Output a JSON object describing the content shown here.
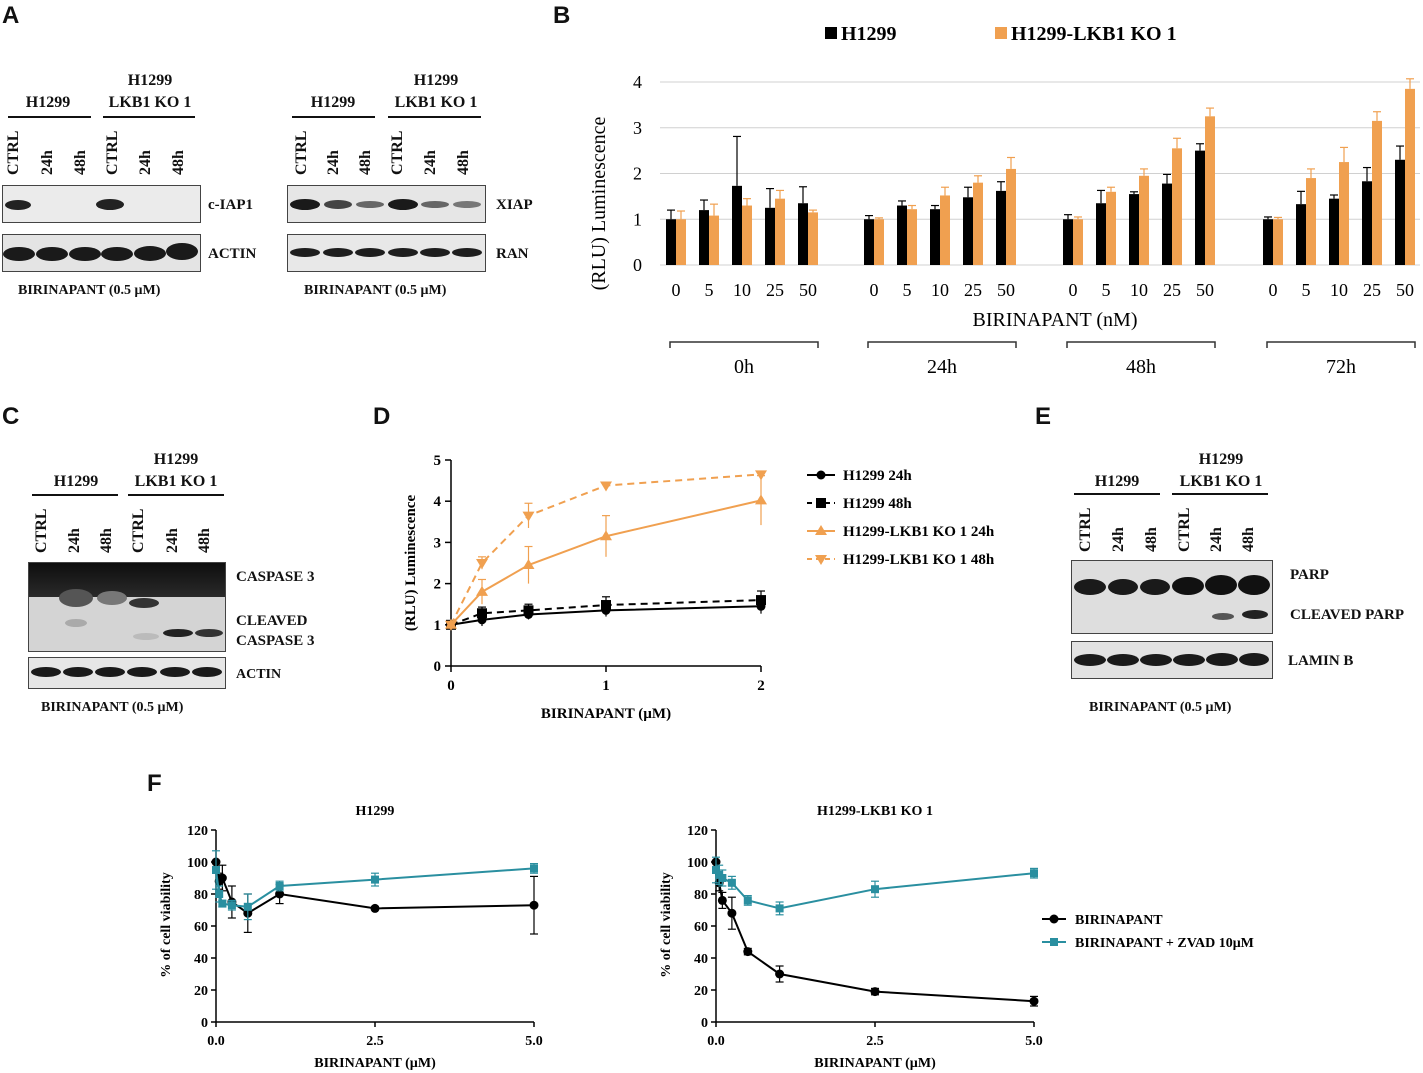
{
  "panels": {
    "A": "A",
    "B": "B",
    "C": "C",
    "D": "D",
    "E": "E",
    "F": "F"
  },
  "western": {
    "group1": "H1299",
    "group2_line1": "H1299",
    "group2_line2": "LKB1 KO 1",
    "lanes": [
      "CTRL",
      "24h",
      "48h",
      "CTRL",
      "24h",
      "48h"
    ],
    "condition": "BIRINAPANT (0.5 μM)",
    "A_left_labels": [
      "c-IAP1",
      "ACTIN"
    ],
    "A_right_labels": [
      "XIAP",
      "RAN"
    ],
    "C_labels": [
      "CASPASE 3",
      "CLEAVED",
      "CASPASE 3",
      "ACTIN"
    ],
    "E_labels": [
      "PARP",
      "CLEAVED PARP",
      "LAMIN B"
    ]
  },
  "chart_data": [
    {
      "id": "B",
      "type": "bar",
      "title": "",
      "ylabel": "(RLU) Luminescence",
      "xlabel": "BIRINAPANT (nM)",
      "ylim": [
        0,
        4
      ],
      "yticks": [
        0,
        1,
        2,
        3,
        4
      ],
      "groups": [
        "0h",
        "24h",
        "48h",
        "72h"
      ],
      "categories": [
        "0",
        "5",
        "10",
        "25",
        "50"
      ],
      "colors": {
        "H1299": "#000000",
        "H1299-LKB1 KO 1": "#F0A050"
      },
      "series": [
        {
          "name": "H1299",
          "values": [
            [
              1.0,
              1.2,
              1.73,
              1.25,
              1.35
            ],
            [
              1.0,
              1.3,
              1.22,
              1.48,
              1.62
            ],
            [
              1.0,
              1.35,
              1.55,
              1.78,
              2.5
            ],
            [
              1.0,
              1.33,
              1.45,
              1.83,
              2.3
            ]
          ],
          "errors": [
            [
              0.2,
              0.22,
              1.08,
              0.42,
              0.36
            ],
            [
              0.08,
              0.1,
              0.08,
              0.22,
              0.2
            ],
            [
              0.1,
              0.28,
              0.05,
              0.2,
              0.15
            ],
            [
              0.05,
              0.28,
              0.08,
              0.3,
              0.3
            ]
          ]
        },
        {
          "name": "H1299-LKB1 KO 1",
          "values": [
            [
              1.0,
              1.08,
              1.3,
              1.45,
              1.15
            ],
            [
              1.0,
              1.22,
              1.52,
              1.8,
              2.1
            ],
            [
              1.0,
              1.6,
              1.95,
              2.55,
              3.25
            ],
            [
              1.0,
              1.9,
              2.25,
              3.15,
              3.85
            ]
          ],
          "errors": [
            [
              0.18,
              0.25,
              0.15,
              0.18,
              0.05
            ],
            [
              0.03,
              0.08,
              0.18,
              0.15,
              0.25
            ],
            [
              0.05,
              0.1,
              0.15,
              0.22,
              0.18
            ],
            [
              0.04,
              0.2,
              0.32,
              0.2,
              0.22
            ]
          ]
        }
      ]
    },
    {
      "id": "D",
      "type": "line",
      "ylabel": "(RLU) Luminescence",
      "xlabel": "BIRINAPANT (µM)",
      "xlim": [
        0,
        2
      ],
      "ylim": [
        0,
        5
      ],
      "xticks": [
        0,
        1,
        2
      ],
      "yticks": [
        0,
        1,
        2,
        3,
        4,
        5
      ],
      "series": [
        {
          "name": "H1299 24h",
          "color": "#000000",
          "dash": false,
          "marker": "circle",
          "x": [
            0,
            0.2,
            0.5,
            1,
            2
          ],
          "y": [
            1.0,
            1.12,
            1.25,
            1.35,
            1.45
          ],
          "err": [
            0.05,
            0.15,
            0.12,
            0.15,
            0.18
          ]
        },
        {
          "name": "H1299 48h",
          "color": "#000000",
          "dash": true,
          "marker": "square",
          "x": [
            0,
            0.2,
            0.5,
            1,
            2
          ],
          "y": [
            1.0,
            1.28,
            1.35,
            1.48,
            1.6
          ],
          "err": [
            0.05,
            0.15,
            0.15,
            0.2,
            0.22
          ]
        },
        {
          "name": "H1299-LKB1 KO 1 24h",
          "color": "#F0A050",
          "dash": false,
          "marker": "triangle",
          "x": [
            0,
            0.2,
            0.5,
            1,
            2
          ],
          "y": [
            1.0,
            1.8,
            2.45,
            3.15,
            4.02
          ],
          "err": [
            0.05,
            0.3,
            0.45,
            0.5,
            0.6
          ]
        },
        {
          "name": "H1299-LKB1 KO 1 48h",
          "color": "#F0A050",
          "dash": true,
          "marker": "triangle-down",
          "x": [
            0,
            0.2,
            0.5,
            1,
            2
          ],
          "y": [
            1.0,
            2.5,
            3.65,
            4.38,
            4.65
          ],
          "err": [
            0.05,
            0.15,
            0.3,
            0.05,
            0.05
          ]
        }
      ]
    },
    {
      "id": "F1",
      "type": "line",
      "title": "H1299",
      "ylabel": "% of cell viability",
      "xlabel": "BIRINAPANT (µM)",
      "xlim": [
        0,
        5
      ],
      "ylim": [
        0,
        120
      ],
      "xticks": [
        "0.0",
        "2.5",
        "5.0"
      ],
      "yticks": [
        0,
        20,
        40,
        60,
        80,
        100,
        120
      ],
      "series": [
        {
          "name": "BIRINAPANT",
          "color": "#000000",
          "x": [
            0,
            0.05,
            0.1,
            0.25,
            0.5,
            1,
            2.5,
            5
          ],
          "y": [
            100,
            88,
            90,
            75,
            68,
            80,
            71,
            73
          ],
          "err": [
            0,
            5,
            8,
            10,
            12,
            6,
            1,
            18
          ]
        },
        {
          "name": "BIRINAPANT + ZVAD 10μM",
          "color": "#2A8FA0",
          "x": [
            0,
            0.05,
            0.1,
            0.25,
            0.5,
            1,
            2.5,
            5
          ],
          "y": [
            95,
            80,
            74,
            73,
            72,
            85,
            89,
            96
          ],
          "err": [
            12,
            5,
            2,
            3,
            8,
            3,
            4,
            3
          ]
        }
      ]
    },
    {
      "id": "F2",
      "type": "line",
      "title": "H1299-LKB1 KO 1",
      "ylabel": "% of cell viability",
      "xlabel": "BIRINAPANT (µM)",
      "xlim": [
        0,
        5
      ],
      "ylim": [
        0,
        120
      ],
      "xticks": [
        "0.0",
        "2.5",
        "5.0"
      ],
      "yticks": [
        0,
        20,
        40,
        60,
        80,
        100,
        120
      ],
      "legend": [
        "BIRINAPANT",
        "BIRINAPANT + ZVAD 10μM"
      ],
      "series": [
        {
          "name": "BIRINAPANT",
          "color": "#000000",
          "x": [
            0,
            0.05,
            0.1,
            0.25,
            0.5,
            1,
            2.5,
            5
          ],
          "y": [
            100,
            87,
            76,
            68,
            44,
            30,
            19,
            13
          ],
          "err": [
            0,
            5,
            5,
            10,
            2,
            5,
            2,
            3
          ]
        },
        {
          "name": "BIRINAPANT + ZVAD 10μM",
          "color": "#2A8FA0",
          "x": [
            0,
            0.05,
            0.1,
            0.25,
            0.5,
            1,
            2.5,
            5
          ],
          "y": [
            95,
            92,
            90,
            87,
            76,
            71,
            83,
            93
          ],
          "err": [
            8,
            6,
            5,
            4,
            3,
            4,
            5,
            3
          ]
        }
      ]
    }
  ]
}
